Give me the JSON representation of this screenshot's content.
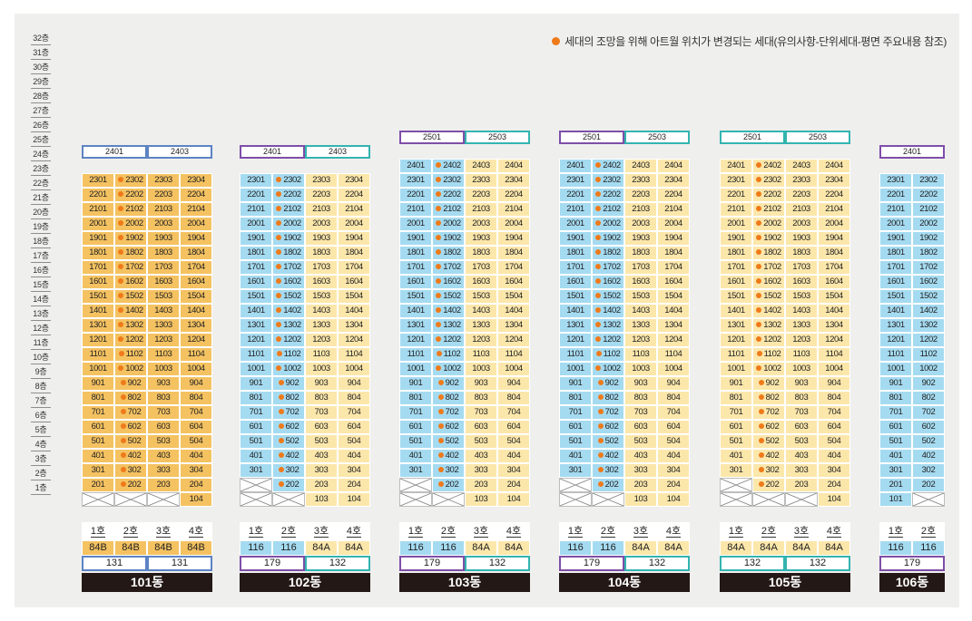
{
  "legend": {
    "text": "세대의 조망을 위해 아트월 위치가 변경되는 세대(유의사항-단위세대-평면 주요내용 참조)",
    "dot_color": "#ef7a1a"
  },
  "floors": [
    "32층",
    "31층",
    "30층",
    "29층",
    "28층",
    "27층",
    "26층",
    "25층",
    "24층",
    "23층",
    "22층",
    "21층",
    "20층",
    "19층",
    "18층",
    "17층",
    "16층",
    "15층",
    "14층",
    "13층",
    "12층",
    "11층",
    "10층",
    "9층",
    "8층",
    "7층",
    "6층",
    "5층",
    "4층",
    "3층",
    "2층",
    "1층"
  ],
  "colors": {
    "orange": "#f5c261",
    "blue": "#a5dbf1",
    "yellow": "#fce7ab",
    "marker": "#ef7a1a"
  },
  "buildings": [
    {
      "name": "101동",
      "top_floor": 24,
      "first_floor_ranges": [
        1,
        2,
        3
      ],
      "col_colors": [
        "orange",
        "orange",
        "orange",
        "orange"
      ],
      "headers": [
        {
          "label": "2401",
          "span": 2,
          "border": "blue"
        },
        {
          "label": "2403",
          "span": 2,
          "border": "blue"
        }
      ],
      "units": [
        "1호",
        "2호",
        "3호",
        "4호"
      ],
      "types": [
        "84B",
        "84B",
        "84B",
        "84B"
      ],
      "capacity": [
        {
          "label": "131",
          "span": 2,
          "border": "blue"
        },
        {
          "label": "131",
          "span": 2,
          "border": "blue"
        }
      ],
      "marker_col": 1,
      "floor2_crossed": [],
      "floor3_crossed": []
    },
    {
      "name": "102동",
      "top_floor": 24,
      "first_floor_ranges": [
        1,
        2
      ],
      "col_colors": [
        "blue",
        "blue",
        "yellow",
        "yellow"
      ],
      "headers": [
        {
          "label": "2401",
          "span": 2,
          "border": "purple"
        },
        {
          "label": "2403",
          "span": 2,
          "border": "teal"
        }
      ],
      "units": [
        "1호",
        "2호",
        "3호",
        "4호"
      ],
      "types": [
        "116",
        "116",
        "84A",
        "84A"
      ],
      "capacity": [
        {
          "label": "179",
          "span": 2,
          "border": "purple"
        },
        {
          "label": "132",
          "span": 2,
          "border": "teal"
        }
      ],
      "marker_col": 1,
      "floor2_crossed": [
        1
      ],
      "floor3_crossed": []
    },
    {
      "name": "103동",
      "top_floor": 25,
      "first_floor_ranges": [
        1,
        2
      ],
      "col_colors": [
        "blue",
        "blue",
        "yellow",
        "yellow"
      ],
      "headers": [
        {
          "label": "2501",
          "span": 2,
          "border": "purple"
        },
        {
          "label": "2503",
          "span": 2,
          "border": "teal"
        }
      ],
      "units": [
        "1호",
        "2호",
        "3호",
        "4호"
      ],
      "types": [
        "116",
        "116",
        "84A",
        "84A"
      ],
      "capacity": [
        {
          "label": "179",
          "span": 2,
          "border": "purple"
        },
        {
          "label": "132",
          "span": 2,
          "border": "teal"
        }
      ],
      "marker_col": 1,
      "floor2_crossed": [
        1
      ],
      "floor3_crossed": []
    },
    {
      "name": "104동",
      "top_floor": 25,
      "first_floor_ranges": [
        1,
        2
      ],
      "col_colors": [
        "blue",
        "blue",
        "yellow",
        "yellow"
      ],
      "headers": [
        {
          "label": "2501",
          "span": 2,
          "border": "purple"
        },
        {
          "label": "2503",
          "span": 2,
          "border": "teal"
        }
      ],
      "units": [
        "1호",
        "2호",
        "3호",
        "4호"
      ],
      "types": [
        "116",
        "116",
        "84A",
        "84A"
      ],
      "capacity": [
        {
          "label": "179",
          "span": 2,
          "border": "purple"
        },
        {
          "label": "132",
          "span": 2,
          "border": "teal"
        }
      ],
      "marker_col": 1,
      "floor2_crossed": [
        1
      ],
      "floor3_crossed": []
    },
    {
      "name": "105동",
      "top_floor": 25,
      "first_floor_ranges": [
        1,
        2,
        3
      ],
      "col_colors": [
        "yellow",
        "yellow",
        "yellow",
        "yellow"
      ],
      "headers": [
        {
          "label": "2501",
          "span": 2,
          "border": "teal"
        },
        {
          "label": "2503",
          "span": 2,
          "border": "teal"
        }
      ],
      "units": [
        "1호",
        "2호",
        "3호",
        "4호"
      ],
      "types": [
        "84A",
        "84A",
        "84A",
        "84A"
      ],
      "capacity": [
        {
          "label": "132",
          "span": 2,
          "border": "teal"
        },
        {
          "label": "132",
          "span": 2,
          "border": "teal"
        }
      ],
      "marker_col": 1,
      "floor2_crossed": [
        1
      ],
      "floor3_crossed": []
    },
    {
      "name": "106동",
      "top_floor": 24,
      "first_floor_ranges": [
        2
      ],
      "col_colors": [
        "blue",
        "blue"
      ],
      "headers": [
        {
          "label": "2401",
          "span": 2,
          "border": "purple"
        }
      ],
      "units": [
        "1호",
        "2호"
      ],
      "types": [
        "116",
        "116"
      ],
      "capacity": [
        {
          "label": "179",
          "span": 2,
          "border": "purple"
        }
      ],
      "marker_col": -1,
      "floor2_crossed": [],
      "floor3_crossed": []
    }
  ],
  "first_floor_units": {
    "101동": [
      "",
      "",
      "",
      "104"
    ],
    "102동": [
      "",
      "",
      "103",
      "104"
    ],
    "103동": [
      "",
      "",
      "103",
      "104"
    ],
    "104동": [
      "",
      "",
      "103",
      "104"
    ],
    "105동": [
      "",
      "",
      "",
      "104"
    ],
    "106동": [
      "101",
      ""
    ]
  }
}
